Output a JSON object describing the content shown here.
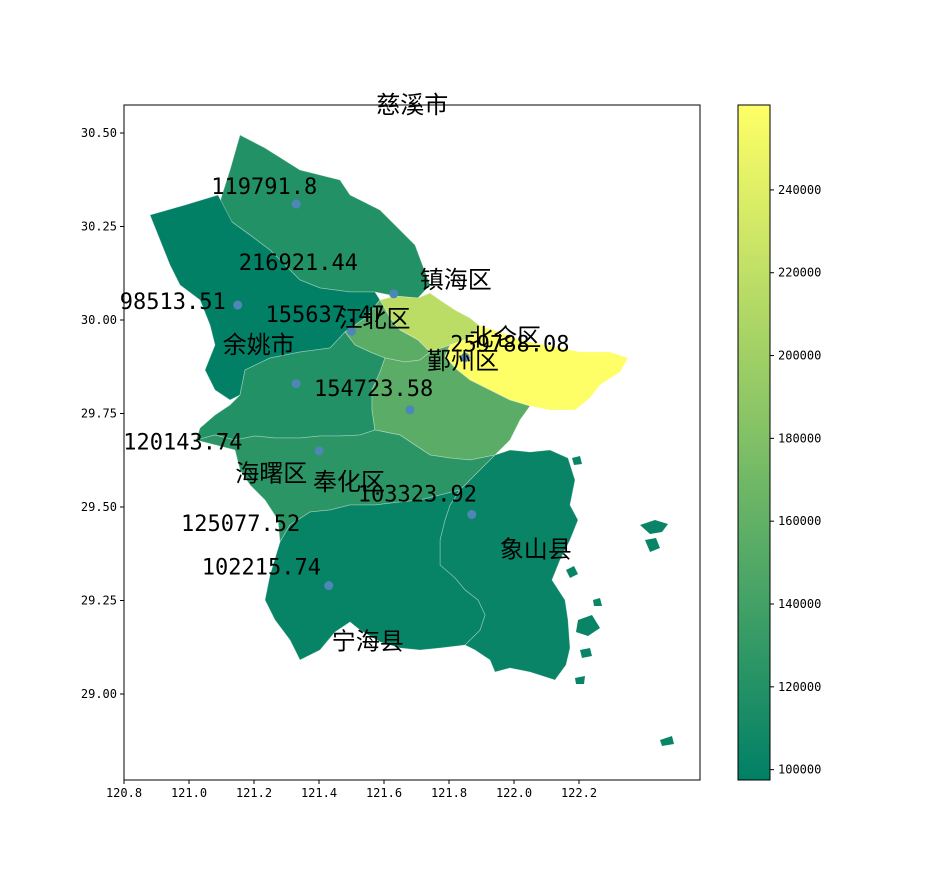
{
  "chart_data": {
    "type": "choropleth",
    "xlim": [
      120.8,
      122.35
    ],
    "ylim": [
      28.82,
      30.57
    ],
    "x_ticks": [
      "120.8",
      "121.0",
      "121.2",
      "121.4",
      "121.6",
      "121.8",
      "122.0",
      "122.2"
    ],
    "y_ticks": [
      "29.00",
      "29.25",
      "29.50",
      "29.75",
      "30.00",
      "30.25",
      "30.50"
    ],
    "colorbar": {
      "min": 97500,
      "max": 260500,
      "ticks": [
        "100000",
        "120000",
        "140000",
        "160000",
        "180000",
        "200000",
        "220000",
        "240000"
      ],
      "colormap": "summer",
      "color_low": "#008066",
      "color_high": "#ffff66"
    },
    "regions": [
      {
        "name": "慈溪市",
        "value": 119791.8,
        "value_label": "119791.8",
        "centroid": [
          121.33,
          30.31
        ]
      },
      {
        "name": "镇海区",
        "value": 216921.44,
        "value_label": "216921.44",
        "centroid": [
          121.63,
          30.07
        ]
      },
      {
        "name": "余姚市",
        "value": 98513.51,
        "value_label": "98513.51",
        "centroid": [
          121.15,
          30.04
        ]
      },
      {
        "name": "江北区",
        "value": 155637.47,
        "value_label": "155637.47",
        "centroid": [
          121.5,
          29.97
        ]
      },
      {
        "name": "北仑区",
        "value": 259788.08,
        "value_label": "259788.08",
        "centroid": [
          121.85,
          29.9
        ]
      },
      {
        "name": "海曙区",
        "value": 120143.74,
        "value_label": "120143.74",
        "centroid": [
          121.33,
          29.83
        ]
      },
      {
        "name": "鄞州区",
        "value": 154723.58,
        "value_label": "154723.58",
        "centroid": [
          121.68,
          29.76
        ]
      },
      {
        "name": "奉化区",
        "value": 125077.52,
        "value_label": "125077.52",
        "centroid": [
          121.4,
          29.65
        ]
      },
      {
        "name": "象山县",
        "value": 103323.92,
        "value_label": "103323.92",
        "centroid": [
          121.87,
          29.48
        ]
      },
      {
        "name": "宁海县",
        "value": 102215.74,
        "value_label": "102215.74",
        "centroid": [
          121.43,
          29.29
        ]
      }
    ]
  }
}
